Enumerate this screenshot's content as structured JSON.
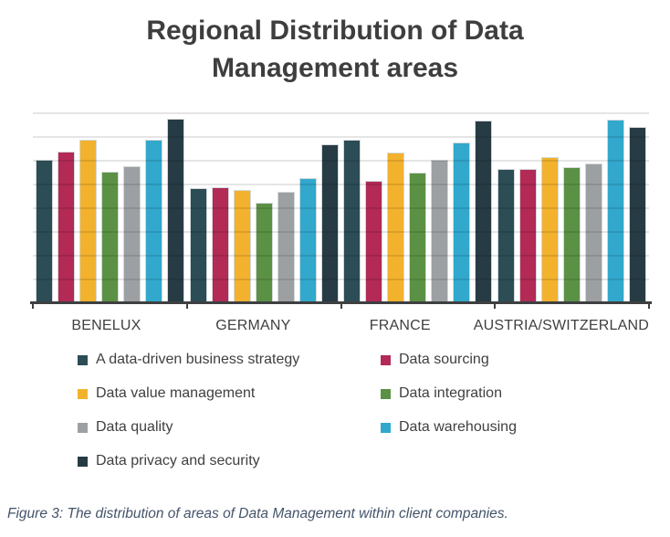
{
  "title": {
    "line1": "Regional Distribution of Data",
    "line2": "Management areas"
  },
  "caption": "Figure 3: The distribution of areas of Data Management within client companies.",
  "chart_data": {
    "type": "bar",
    "title": "Regional Distribution of Data Management areas",
    "categories": [
      "BENELUX",
      "GERMANY",
      "FRANCE",
      "AUSTRIA/SWITZERLAND"
    ],
    "series": [
      {
        "name": "A data-driven business strategy",
        "color": "#2c4c56",
        "values": [
          6.0,
          4.8,
          6.85,
          5.6
        ]
      },
      {
        "name": "Data sourcing",
        "color": "#b22a55",
        "values": [
          6.35,
          4.85,
          5.1,
          5.6
        ]
      },
      {
        "name": "Data value management",
        "color": "#f2b22d",
        "values": [
          6.85,
          4.75,
          6.3,
          6.1
        ]
      },
      {
        "name": "Data integration",
        "color": "#5b9144",
        "values": [
          5.5,
          4.2,
          5.45,
          5.7
        ]
      },
      {
        "name": "Data quality",
        "color": "#9da0a3",
        "values": [
          5.75,
          4.65,
          6.0,
          5.85
        ]
      },
      {
        "name": "Data warehousing",
        "color": "#31a8cc",
        "values": [
          6.85,
          5.25,
          6.75,
          7.7
        ]
      },
      {
        "name": "Data privacy and security",
        "color": "#273b44",
        "values": [
          7.75,
          6.65,
          7.65,
          7.4
        ]
      }
    ],
    "xlabel": "",
    "ylabel": "",
    "ylim": [
      0,
      8
    ],
    "gridline_interval": 1,
    "y_axis_labels_visible": false,
    "grid": true,
    "legend_position": "bottom",
    "axis_color": "#3f4041",
    "gridline_color": "#e6e6e6"
  }
}
